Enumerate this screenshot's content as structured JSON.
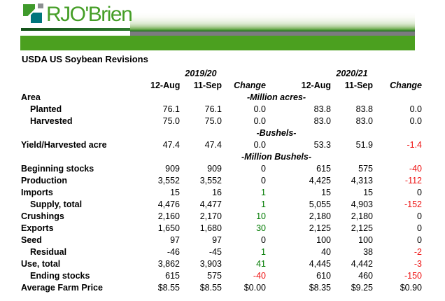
{
  "header": {
    "logo_text": "RJO'Brien",
    "colors": {
      "logo_green": "#459e27",
      "logo_dark_green": "#3f9a2b",
      "logo_teal": "#00767c",
      "logo_gray": "#8c9091",
      "underline_green": "#14521a",
      "gray_bar": "#7b7b80",
      "green_bar": "#4ba01f"
    }
  },
  "title": "USDA US Soybean Revisions",
  "table": {
    "year_headers": [
      "2019/20",
      "2020/21"
    ],
    "column_headers": [
      "12-Aug",
      "11-Sep",
      "Change",
      "12-Aug",
      "11-Sep",
      "Change"
    ],
    "change_colors": {
      "green": "#007a00",
      "red": "#ee1111",
      "black": "#000000"
    },
    "rows": [
      {
        "type": "section_unit",
        "label": "Area",
        "unit": "-Million acres-"
      },
      {
        "type": "data",
        "label": "Planted",
        "indent": true,
        "cells": [
          {
            "v": "76.1"
          },
          {
            "v": "76.1"
          },
          {
            "v": "0.0"
          },
          {
            "v": "83.8"
          },
          {
            "v": "83.8"
          },
          {
            "v": "0.0"
          }
        ]
      },
      {
        "type": "data",
        "label": "Harvested",
        "indent": true,
        "cells": [
          {
            "v": "75.0"
          },
          {
            "v": "75.0"
          },
          {
            "v": "0.0"
          },
          {
            "v": "83.0"
          },
          {
            "v": "83.0"
          },
          {
            "v": "0.0"
          }
        ]
      },
      {
        "type": "unit",
        "unit": "-Bushels-"
      },
      {
        "type": "data",
        "label": "Yield/Harvested acre",
        "cells": [
          {
            "v": "47.4"
          },
          {
            "v": "47.4"
          },
          {
            "v": "0.0"
          },
          {
            "v": "53.3"
          },
          {
            "v": "51.9"
          },
          {
            "v": "-1.4",
            "c": "red"
          }
        ]
      },
      {
        "type": "unit",
        "unit": "-Million Bushels-"
      },
      {
        "type": "data",
        "label": "Beginning stocks",
        "cells": [
          {
            "v": "909"
          },
          {
            "v": "909"
          },
          {
            "v": "0"
          },
          {
            "v": "615"
          },
          {
            "v": "575"
          },
          {
            "v": "-40",
            "c": "red"
          }
        ]
      },
      {
        "type": "data",
        "label": "Production",
        "cells": [
          {
            "v": "3,552"
          },
          {
            "v": "3,552"
          },
          {
            "v": "0"
          },
          {
            "v": "4,425"
          },
          {
            "v": "4,313"
          },
          {
            "v": "-112",
            "c": "red"
          }
        ]
      },
      {
        "type": "data",
        "label": "Imports",
        "cells": [
          {
            "v": "15"
          },
          {
            "v": "16"
          },
          {
            "v": "1",
            "c": "green"
          },
          {
            "v": "15"
          },
          {
            "v": "15"
          },
          {
            "v": "0"
          }
        ]
      },
      {
        "type": "data",
        "label": "Supply, total",
        "indent": true,
        "cells": [
          {
            "v": "4,476"
          },
          {
            "v": "4,477"
          },
          {
            "v": "1",
            "c": "green"
          },
          {
            "v": "5,055"
          },
          {
            "v": "4,903"
          },
          {
            "v": "-152",
            "c": "red"
          }
        ]
      },
      {
        "type": "data",
        "label": "Crushings",
        "cells": [
          {
            "v": "2,160"
          },
          {
            "v": "2,170"
          },
          {
            "v": "10",
            "c": "green"
          },
          {
            "v": "2,180"
          },
          {
            "v": "2,180"
          },
          {
            "v": "0"
          }
        ]
      },
      {
        "type": "data",
        "label": "Exports",
        "cells": [
          {
            "v": "1,650"
          },
          {
            "v": "1,680"
          },
          {
            "v": "30",
            "c": "green"
          },
          {
            "v": "2,125"
          },
          {
            "v": "2,125"
          },
          {
            "v": "0"
          }
        ]
      },
      {
        "type": "data",
        "label": "Seed",
        "cells": [
          {
            "v": "97"
          },
          {
            "v": "97"
          },
          {
            "v": "0"
          },
          {
            "v": "100"
          },
          {
            "v": "100"
          },
          {
            "v": "0"
          }
        ]
      },
      {
        "type": "data",
        "label": "Residual",
        "indent": true,
        "cells": [
          {
            "v": "-46"
          },
          {
            "v": "-45"
          },
          {
            "v": "1",
            "c": "green"
          },
          {
            "v": "40"
          },
          {
            "v": "38"
          },
          {
            "v": "-2",
            "c": "red"
          }
        ]
      },
      {
        "type": "data",
        "label": "Use, total",
        "cells": [
          {
            "v": "3,862"
          },
          {
            "v": "3,903"
          },
          {
            "v": "41",
            "c": "green"
          },
          {
            "v": "4,445"
          },
          {
            "v": "4,442"
          },
          {
            "v": "-3",
            "c": "red"
          }
        ]
      },
      {
        "type": "data",
        "label": "Ending stocks",
        "indent": true,
        "cells": [
          {
            "v": "615"
          },
          {
            "v": "575"
          },
          {
            "v": "-40",
            "c": "red"
          },
          {
            "v": "610"
          },
          {
            "v": "460"
          },
          {
            "v": "-150",
            "c": "red"
          }
        ]
      },
      {
        "type": "data",
        "label": "Average Farm Price",
        "cells": [
          {
            "v": "$8.55"
          },
          {
            "v": "$8.55"
          },
          {
            "v": "$0.00"
          },
          {
            "v": "$8.35"
          },
          {
            "v": "$9.25"
          },
          {
            "v": "$0.90"
          }
        ]
      }
    ]
  }
}
